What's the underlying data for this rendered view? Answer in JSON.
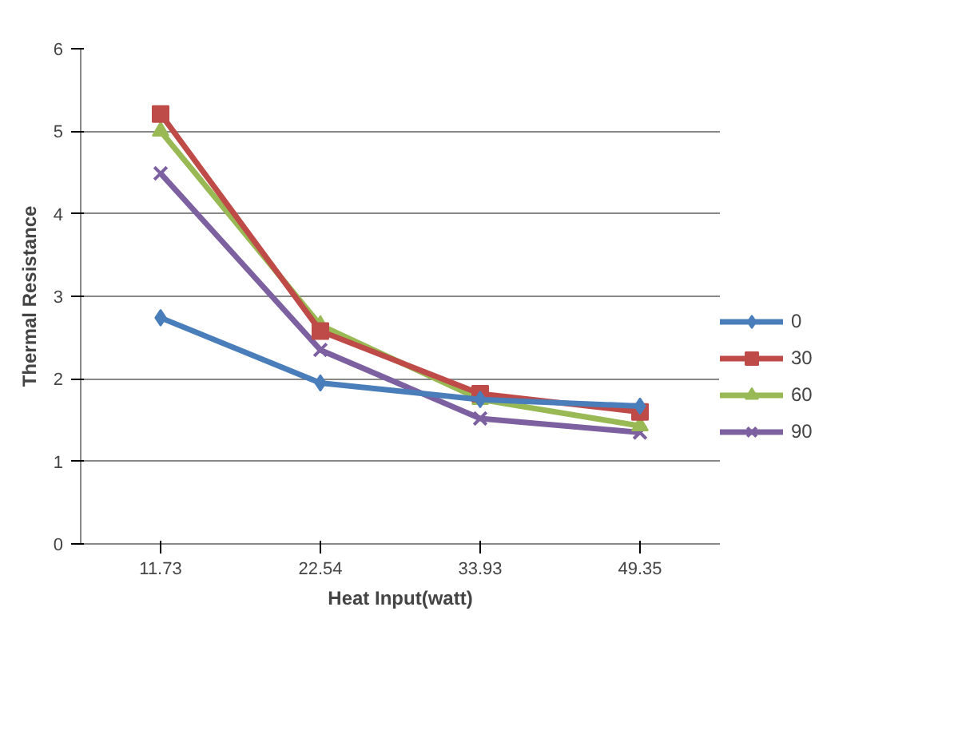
{
  "chart_data": {
    "type": "line",
    "xlabel": "Heat Input(watt)",
    "ylabel": "Thermal Resistance",
    "categories": [
      "11.73",
      "22.54",
      "33.93",
      "49.35"
    ],
    "series": [
      {
        "name": "0",
        "color": "#4a7ebb",
        "values": [
          2.74,
          1.95,
          1.75,
          1.67
        ],
        "marker": "diamond"
      },
      {
        "name": "30",
        "color": "#be4b48",
        "values": [
          5.21,
          2.58,
          1.82,
          1.6
        ],
        "marker": "square"
      },
      {
        "name": "60",
        "color": "#98b954",
        "values": [
          5.0,
          2.65,
          1.75,
          1.43
        ],
        "marker": "triangle"
      },
      {
        "name": "90",
        "color": "#7d60a0",
        "values": [
          4.49,
          2.35,
          1.52,
          1.35
        ],
        "marker": "cross"
      }
    ],
    "ylim": [
      0,
      6
    ],
    "yticks": [
      0,
      1,
      2,
      3,
      4,
      5,
      6
    ],
    "grid": "y",
    "legend": "right"
  }
}
